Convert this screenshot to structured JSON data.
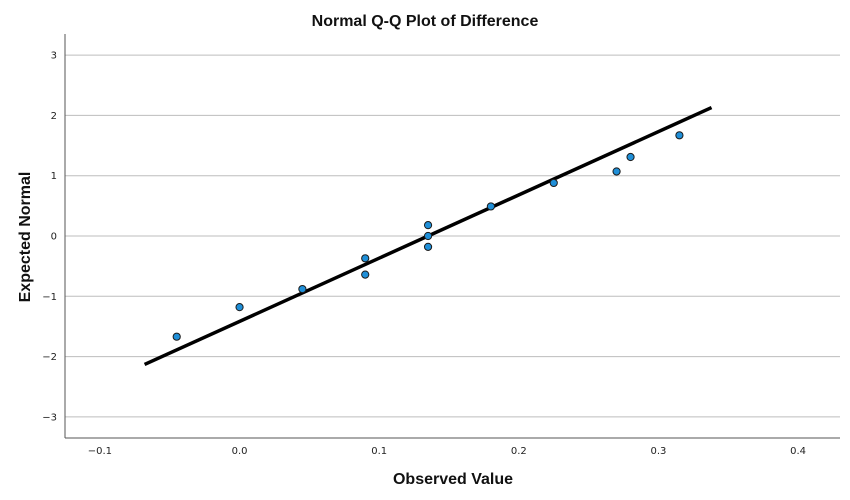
{
  "chart_data": {
    "type": "scatter",
    "title": "Normal Q-Q Plot of Difference",
    "xlabel": "Observed Value",
    "ylabel": "Expected Normal",
    "xlim": [
      -0.125,
      0.43
    ],
    "ylim": [
      -3.35,
      3.35
    ],
    "x_ticks": [
      -0.1,
      0.0,
      0.1,
      0.2,
      0.3,
      0.4
    ],
    "x_tick_labels": [
      "−0.1",
      "0.0",
      "0.1",
      "0.2",
      "0.3",
      "0.4"
    ],
    "y_ticks": [
      -3,
      -2,
      -1,
      0,
      1,
      2,
      3
    ],
    "y_tick_labels": [
      "−3",
      "−2",
      "−1",
      "0",
      "1",
      "2",
      "3"
    ],
    "grid": "horizontal",
    "points": [
      {
        "x": -0.045,
        "y": -1.67
      },
      {
        "x": 0.0,
        "y": -1.18
      },
      {
        "x": 0.045,
        "y": -0.88
      },
      {
        "x": 0.09,
        "y": -0.64
      },
      {
        "x": 0.09,
        "y": -0.37
      },
      {
        "x": 0.135,
        "y": -0.18
      },
      {
        "x": 0.135,
        "y": 0.0
      },
      {
        "x": 0.135,
        "y": 0.18
      },
      {
        "x": 0.18,
        "y": 0.49
      },
      {
        "x": 0.225,
        "y": 0.88
      },
      {
        "x": 0.27,
        "y": 1.07
      },
      {
        "x": 0.28,
        "y": 1.31
      },
      {
        "x": 0.315,
        "y": 1.67
      }
    ],
    "reference_line": {
      "x": [
        -0.068,
        0.338
      ],
      "y": [
        -2.13,
        2.13
      ]
    },
    "colors": {
      "points": "#1f8fd8",
      "line": "#000000",
      "grid": "#bdbdbd"
    }
  }
}
